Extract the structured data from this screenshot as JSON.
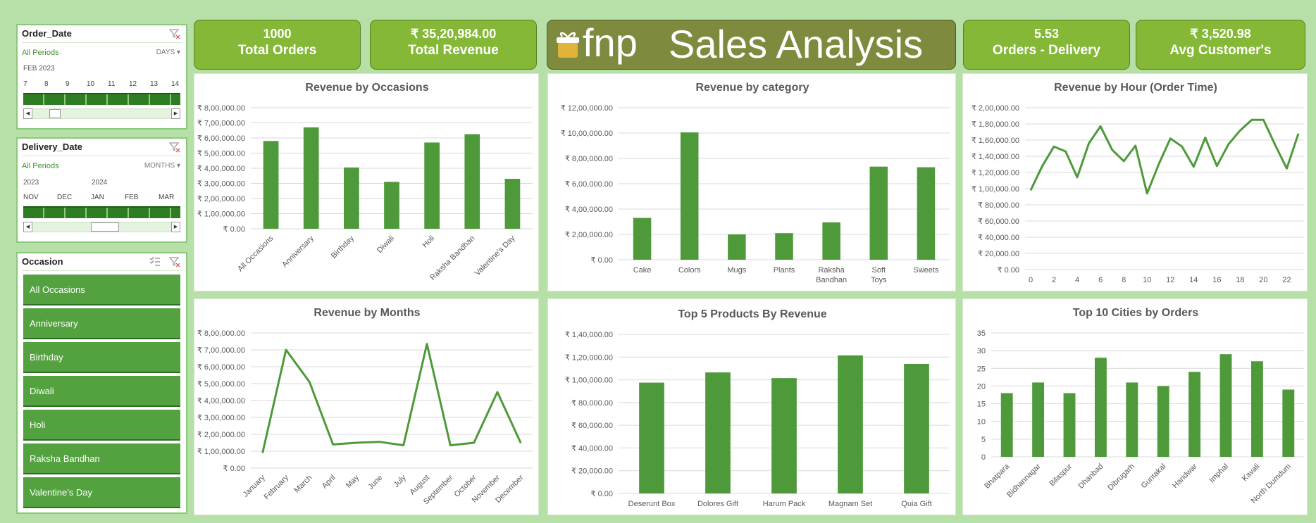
{
  "slicers": {
    "order_date": {
      "title": "Order_Date",
      "period": "All Periods",
      "level": "DAYS",
      "year": "FEB 2023",
      "ticks": [
        "7",
        "8",
        "9",
        "10",
        "11",
        "12",
        "13",
        "14"
      ]
    },
    "delivery_date": {
      "title": "Delivery_Date",
      "period": "All Periods",
      "level": "MONTHS",
      "years": [
        "2023",
        "2024"
      ],
      "ticks": [
        "NOV",
        "DEC",
        "JAN",
        "FEB",
        "MAR"
      ]
    },
    "occasion": {
      "title": "Occasion",
      "items": [
        "All Occasions",
        "Anniversary",
        "Birthday",
        "Diwali",
        "Holi",
        "Raksha Bandhan",
        "Valentine's Day"
      ]
    }
  },
  "kpis": [
    {
      "value": "1000",
      "label": "Total Orders"
    },
    {
      "value": "₹ 35,20,984.00",
      "label": "Total Revenue"
    },
    {
      "value": "5.53",
      "label": "Orders - Delivery"
    },
    {
      "value": "₹ 3,520.98",
      "label": "Avg Customer's"
    }
  ],
  "header": {
    "logo_text": "fnp",
    "title": "Sales Analysis"
  },
  "colors": {
    "bar": "#4e9a3a",
    "line": "#4e9a3a",
    "kpi": "#84b836",
    "title_bg": "#7e8a3d",
    "background": "#b6e0a8"
  },
  "chart_data": [
    {
      "id": "occasions",
      "type": "bar",
      "title": "Revenue by Occasions",
      "categories": [
        "All Occasions",
        "Anniversary",
        "Birthday",
        "Diwali",
        "Holi",
        "Raksha Bandhan",
        "Valentine's Day"
      ],
      "values": [
        580000,
        670000,
        405000,
        310000,
        570000,
        625000,
        330000
      ],
      "ylim": [
        0,
        800000
      ],
      "yticks": [
        "₹ 0.00",
        "₹ 1,00,000.00",
        "₹ 2,00,000.00",
        "₹ 3,00,000.00",
        "₹ 4,00,000.00",
        "₹ 5,00,000.00",
        "₹ 6,00,000.00",
        "₹ 7,00,000.00",
        "₹ 8,00,000.00"
      ],
      "grid": true
    },
    {
      "id": "category",
      "type": "bar",
      "title": "Revenue by category",
      "categories": [
        "Cake",
        "Colors",
        "Mugs",
        "Plants",
        "Raksha Bandhan",
        "Soft Toys",
        "Sweets"
      ],
      "values": [
        330000,
        1005000,
        200000,
        210000,
        295000,
        735000,
        730000
      ],
      "ylim": [
        0,
        1200000
      ],
      "yticks": [
        "₹ 0.00",
        "₹ 2,00,000.00",
        "₹ 4,00,000.00",
        "₹ 6,00,000.00",
        "₹ 8,00,000.00",
        "₹ 10,00,000.00",
        "₹ 12,00,000.00"
      ],
      "grid": true
    },
    {
      "id": "hour",
      "type": "line",
      "title": "Revenue by Hour (Order Time)",
      "x": [
        0,
        1,
        2,
        3,
        4,
        5,
        6,
        7,
        8,
        9,
        10,
        11,
        12,
        13,
        14,
        15,
        16,
        17,
        18,
        19,
        20,
        21,
        22,
        23
      ],
      "values": [
        98000,
        128000,
        152000,
        146000,
        114000,
        156000,
        177000,
        148000,
        134000,
        153000,
        94000,
        130000,
        162000,
        152000,
        127000,
        163000,
        128000,
        155000,
        172000,
        185000,
        185000,
        154000,
        125000,
        168000
      ],
      "xticks": [
        "0",
        "2",
        "4",
        "6",
        "8",
        "10",
        "12",
        "14",
        "16",
        "18",
        "20",
        "22"
      ],
      "ylim": [
        0,
        200000
      ],
      "yticks": [
        "₹ 0.00",
        "₹ 20,000.00",
        "₹ 40,000.00",
        "₹ 60,000.00",
        "₹ 80,000.00",
        "₹ 1,00,000.00",
        "₹ 1,20,000.00",
        "₹ 1,40,000.00",
        "₹ 1,60,000.00",
        "₹ 1,80,000.00",
        "₹ 2,00,000.00"
      ],
      "grid": true
    },
    {
      "id": "months",
      "type": "line",
      "title": "Revenue by Months",
      "categories": [
        "January",
        "February",
        "March",
        "April",
        "May",
        "June",
        "July",
        "August",
        "September",
        "October",
        "November",
        "December"
      ],
      "values": [
        90000,
        700000,
        510000,
        140000,
        150000,
        155000,
        135000,
        735000,
        135000,
        150000,
        450000,
        148000
      ],
      "ylim": [
        0,
        800000
      ],
      "yticks": [
        "₹ 0.00",
        "₹ 1,00,000.00",
        "₹ 2,00,000.00",
        "₹ 3,00,000.00",
        "₹ 4,00,000.00",
        "₹ 5,00,000.00",
        "₹ 6,00,000.00",
        "₹ 7,00,000.00",
        "₹ 8,00,000.00"
      ],
      "grid": true
    },
    {
      "id": "products",
      "type": "bar",
      "title": "Top 5 Products By Revenue",
      "categories": [
        "Deserunt Box",
        "Dolores Gift",
        "Harum Pack",
        "Magnam Set",
        "Quia Gift"
      ],
      "values": [
        97500,
        106500,
        101500,
        121500,
        114000
      ],
      "ylim": [
        0,
        140000
      ],
      "yticks": [
        "₹ 0.00",
        "₹ 20,000.00",
        "₹ 40,000.00",
        "₹ 60,000.00",
        "₹ 80,000.00",
        "₹ 1,00,000.00",
        "₹ 1,20,000.00",
        "₹ 1,40,000.00"
      ],
      "grid": true
    },
    {
      "id": "cities",
      "type": "bar",
      "title": "Top 10 Cities by Orders",
      "categories": [
        "Bhatpara",
        "Bidhannagar",
        "Bilaspur",
        "Dhanbad",
        "Dibrugarh",
        "Guntakal",
        "Haridwar",
        "Imphal",
        "Kavali",
        "North Dumdum"
      ],
      "values": [
        18,
        21,
        18,
        28,
        21,
        20,
        24,
        29,
        27,
        19
      ],
      "ylim": [
        0,
        35
      ],
      "yticks": [
        "0",
        "5",
        "10",
        "15",
        "20",
        "25",
        "30",
        "35"
      ],
      "grid": true
    }
  ]
}
